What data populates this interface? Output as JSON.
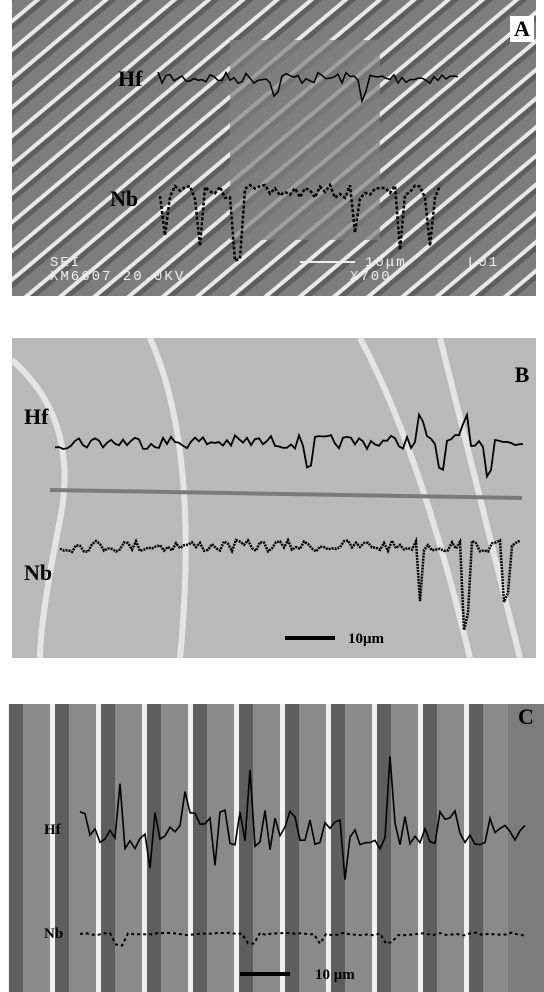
{
  "panels": [
    {
      "label": "A",
      "hf": "Hf",
      "nb": "Nb",
      "overlay": [
        "SEI",
        "XM6607 20.0KV",
        "10μm",
        "L01",
        "X700"
      ]
    },
    {
      "label": "B",
      "hf": "Hf",
      "nb": "Nb",
      "scale": "10μm"
    },
    {
      "label": "C",
      "hf": "Hf",
      "nb": "Nb",
      "scale": "10 μm"
    }
  ]
}
